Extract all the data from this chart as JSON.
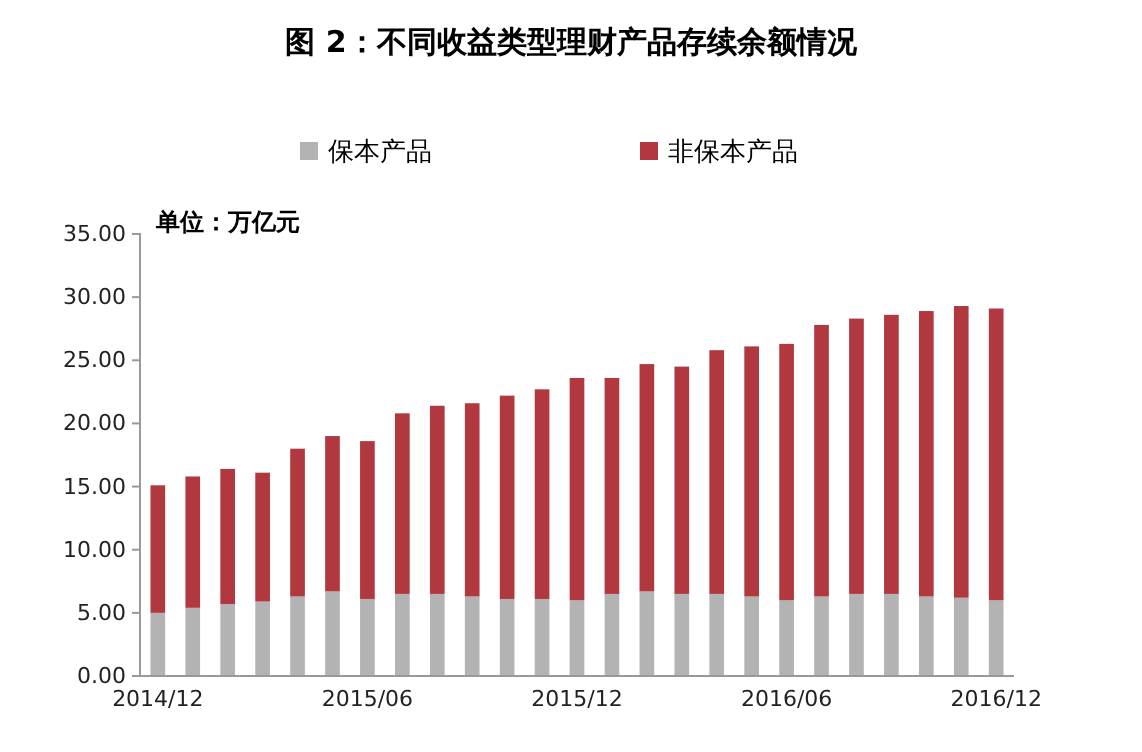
{
  "chart_data": {
    "type": "bar",
    "title": "图 2：不同收益类型理财产品存续余额情况",
    "annotations": [
      "单位：万亿元"
    ],
    "categories": [
      "2014/12",
      null,
      null,
      null,
      null,
      null,
      "2015/06",
      null,
      null,
      null,
      null,
      null,
      "2015/12",
      null,
      null,
      null,
      null,
      null,
      "2016/06",
      null,
      null,
      null,
      null,
      null,
      "2016/12"
    ],
    "stacked": true,
    "legend": "top",
    "grid": false,
    "ylim": [
      0,
      35
    ],
    "yticks": [
      {
        "value": 0,
        "label": "0.00"
      },
      {
        "value": 5,
        "label": "5.00"
      },
      {
        "value": 10,
        "label": "10.00"
      },
      {
        "value": 15,
        "label": "15.00"
      },
      {
        "value": 20,
        "label": "20.00"
      },
      {
        "value": 25,
        "label": "25.00"
      },
      {
        "value": 30,
        "label": "30.00"
      },
      {
        "value": 35,
        "label": "35.00"
      }
    ],
    "series": [
      {
        "name": "保本产品",
        "color": "#b3b3b3",
        "values": [
          5.0,
          5.4,
          5.7,
          5.9,
          6.3,
          6.7,
          6.1,
          6.5,
          6.5,
          6.3,
          6.1,
          6.1,
          6.0,
          6.5,
          6.7,
          6.5,
          6.5,
          6.3,
          6.0,
          6.3,
          6.5,
          6.5,
          6.3,
          6.2,
          6.0
        ]
      },
      {
        "name": "非保本产品",
        "color": "#b0383e",
        "values": [
          10.1,
          10.4,
          10.7,
          10.2,
          11.7,
          12.3,
          12.5,
          14.3,
          14.9,
          15.3,
          16.1,
          16.6,
          17.6,
          17.1,
          18.0,
          18.0,
          19.3,
          19.8,
          20.3,
          21.5,
          21.8,
          22.1,
          22.6,
          23.1,
          23.1
        ]
      }
    ]
  }
}
